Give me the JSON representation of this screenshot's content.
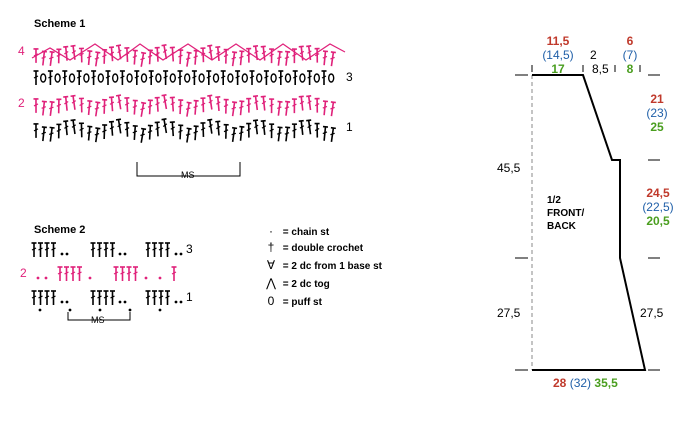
{
  "scheme1": {
    "title": "Scheme 1",
    "rows": {
      "r4": "4",
      "r3": "3",
      "r2": "2",
      "r1": "1"
    },
    "ms_label": "MS"
  },
  "scheme2": {
    "title": "Scheme 2",
    "rows": {
      "r3": "3",
      "r2": "2",
      "r1": "1"
    },
    "ms_label": "MS"
  },
  "legend": [
    {
      "symbol": "·",
      "label": "= chain st"
    },
    {
      "symbol": "†",
      "label": "= double crochet"
    },
    {
      "symbol": "∀",
      "label": "= 2 dc from 1 base st"
    },
    {
      "symbol": "⋀",
      "label": "= 2 dc tog"
    },
    {
      "symbol": "0",
      "label": "= puff st"
    }
  ],
  "schematic": {
    "top_width": {
      "a": "11,5",
      "b": "(14,5)",
      "c": "17"
    },
    "neck_drop": "2",
    "neck_width": "8,5",
    "shoulder": {
      "a": "6",
      "b": "(7)",
      "c": "8"
    },
    "armhole": {
      "a": "21",
      "b": "(23)",
      "c": "25"
    },
    "side_upper": {
      "a": "24,5",
      "b": "(22,5)",
      "c": "20,5"
    },
    "left_upper": "45,5",
    "left_lower": "27,5",
    "right_lower": "27,5",
    "bottom": {
      "a": "28",
      "b": "(32)",
      "c": "35,5"
    },
    "piece_label_1": "1/2",
    "piece_label_2": "FRONT/",
    "piece_label_3": "BACK"
  },
  "colors": {
    "pink": "#e0217a",
    "red": "#c0392b",
    "blue": "#1f5fa8",
    "green": "#4a9e1f"
  }
}
